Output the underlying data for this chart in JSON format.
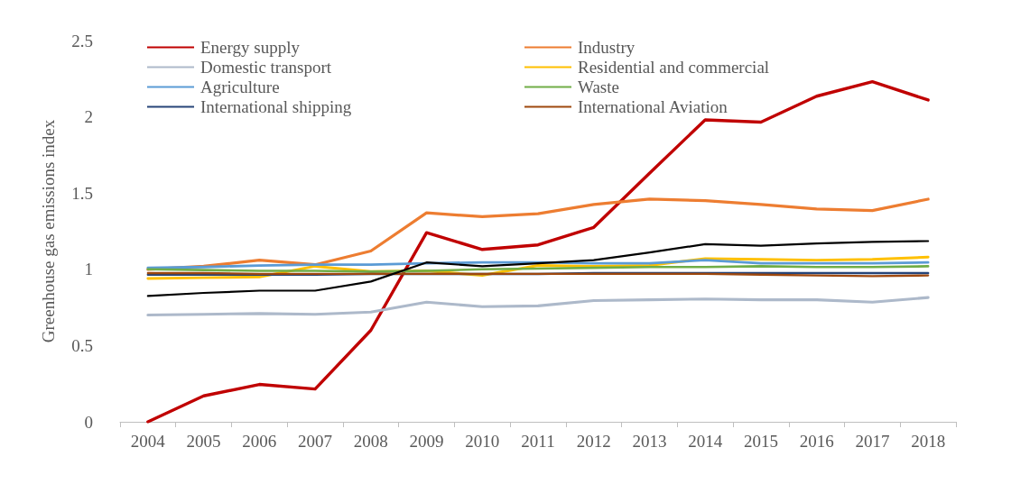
{
  "chart_data": {
    "type": "line",
    "ylabel": "Greenhouse gas emissions index",
    "categories": [
      "2004",
      "2005",
      "2006",
      "2007",
      "2008",
      "2009",
      "2010",
      "2011",
      "2012",
      "2013",
      "2014",
      "2015",
      "2016",
      "2017",
      "2018"
    ],
    "series": [
      {
        "name": "Energy supply",
        "color": "#c00000",
        "values": [
          0,
          0.17,
          0.245,
          0.215,
          0.6,
          1.24,
          1.13,
          1.16,
          1.275,
          1.63,
          1.98,
          1.965,
          2.135,
          2.23,
          2.11
        ]
      },
      {
        "name": "Industry",
        "color": "#ed7d31",
        "values": [
          1.0,
          1.02,
          1.06,
          1.03,
          1.12,
          1.37,
          1.345,
          1.365,
          1.425,
          1.46,
          1.45,
          1.425,
          1.395,
          1.385,
          1.46
        ]
      },
      {
        "name": "Domestic transport",
        "color": "#adb9ca",
        "values": [
          0.7,
          0.705,
          0.71,
          0.705,
          0.72,
          0.785,
          0.755,
          0.76,
          0.795,
          0.8,
          0.805,
          0.8,
          0.8,
          0.785,
          0.815
        ]
      },
      {
        "name": "Residential and commercial",
        "color": "#ffc000",
        "values": [
          0.94,
          0.945,
          0.95,
          1.02,
          0.985,
          0.99,
          0.96,
          1.025,
          1.02,
          1.025,
          1.07,
          1.065,
          1.06,
          1.065,
          1.08
        ]
      },
      {
        "name": "Agriculture",
        "color": "#5b9bd5",
        "values": [
          1.01,
          1.015,
          1.025,
          1.03,
          1.03,
          1.04,
          1.045,
          1.045,
          1.04,
          1.04,
          1.06,
          1.04,
          1.04,
          1.04,
          1.045
        ]
      },
      {
        "name": "Waste",
        "color": "#70ad47",
        "values": [
          1.0,
          0.995,
          0.99,
          0.99,
          0.985,
          0.99,
          1.0,
          1.005,
          1.01,
          1.015,
          1.015,
          1.02,
          1.015,
          1.015,
          1.02
        ]
      },
      {
        "name": "International shipping",
        "color": "#264478",
        "values": [
          0.965,
          0.965,
          0.965,
          0.965,
          0.97,
          0.97,
          0.97,
          0.97,
          0.975,
          0.975,
          0.975,
          0.975,
          0.975,
          0.975,
          0.975
        ]
      },
      {
        "name": "International Aviation",
        "color": "#9e480e",
        "values": [
          0.975,
          0.975,
          0.97,
          0.97,
          0.97,
          0.97,
          0.97,
          0.97,
          0.97,
          0.97,
          0.97,
          0.965,
          0.96,
          0.955,
          0.96
        ]
      },
      {
        "color": "#000000",
        "values": [
          0.825,
          0.845,
          0.86,
          0.86,
          0.92,
          1.045,
          1.02,
          1.04,
          1.06,
          1.11,
          1.165,
          1.155,
          1.17,
          1.18,
          1.185
        ]
      }
    ],
    "ylim": [
      0,
      2.5
    ],
    "yticks": [
      0,
      0.5,
      1,
      1.5,
      2,
      2.5
    ],
    "grid": false,
    "legend": "top",
    "marker": "none",
    "line_style": "solid"
  }
}
